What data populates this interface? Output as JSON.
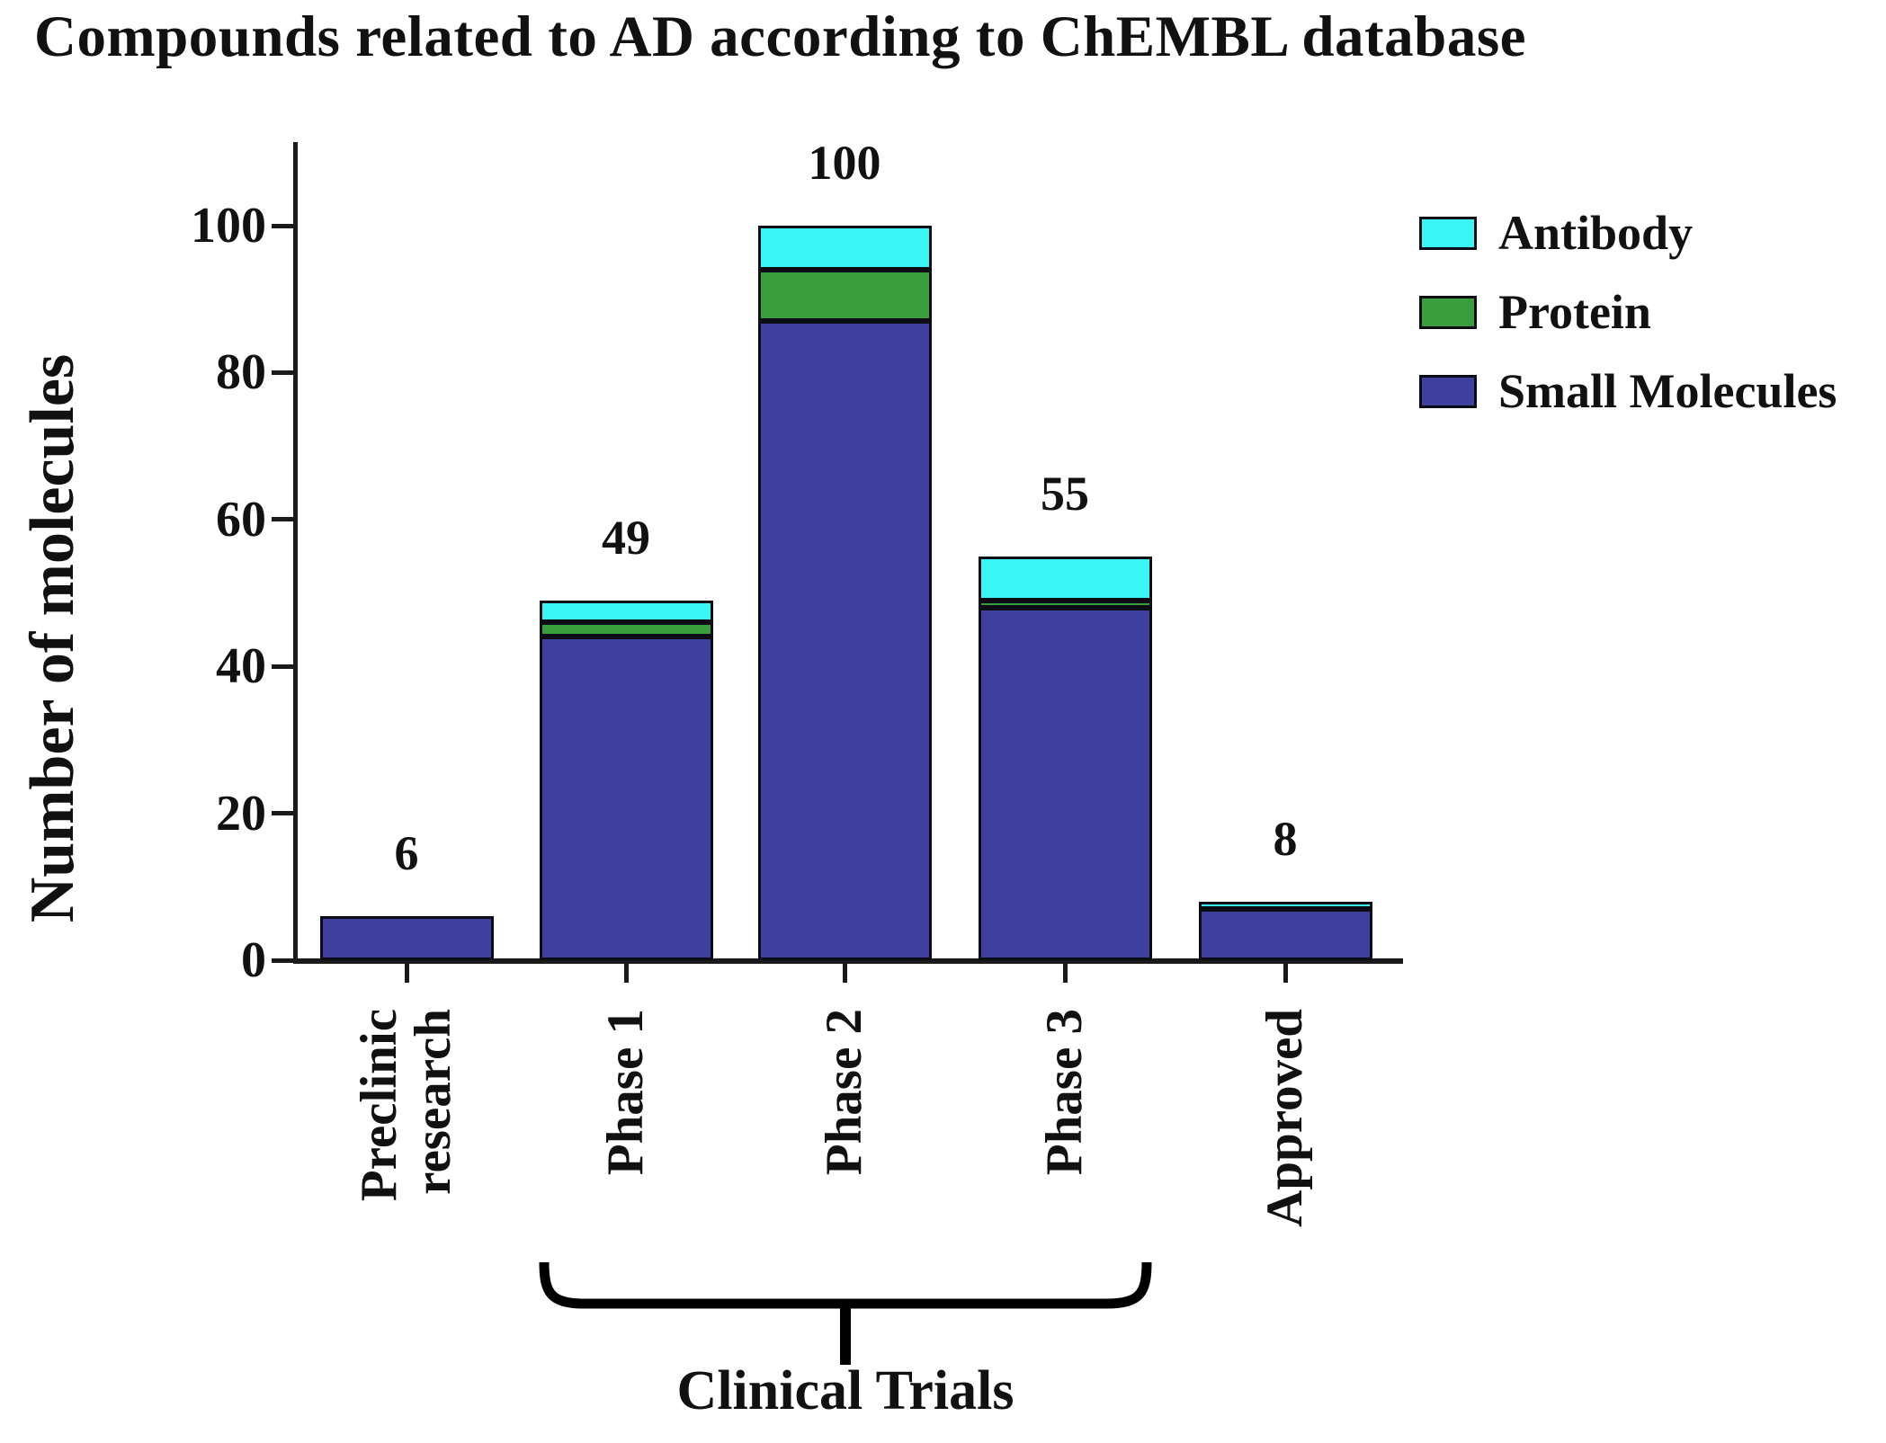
{
  "title": "Compounds related to AD according to ChEMBL database",
  "chart_data": {
    "type": "bar",
    "stacked": true,
    "title": "Compounds related to AD according to ChEMBL database",
    "xlabel": "",
    "ylabel": "Number of molecules",
    "ylim": [
      0,
      111
    ],
    "yticks": [
      0,
      20,
      40,
      60,
      80,
      100
    ],
    "grid": false,
    "legend_position": "right",
    "categories": [
      "Preclinic research",
      "Phase 1",
      "Phase 2",
      "Phase 3",
      "Approved"
    ],
    "category_display_lines": [
      [
        "Preclinic",
        "research"
      ],
      [
        "Phase 1"
      ],
      [
        "Phase 2"
      ],
      [
        "Phase 3"
      ],
      [
        "Approved"
      ]
    ],
    "series": [
      {
        "name": "Small Molecules",
        "color": "#3F3F9D",
        "values": [
          6,
          44,
          87,
          48,
          7
        ]
      },
      {
        "name": "Protein",
        "color": "#3B9E3E",
        "values": [
          0,
          2,
          7,
          1,
          0
        ]
      },
      {
        "name": "Antibody",
        "color": "#3BF4F4",
        "values": [
          0,
          3,
          6,
          6,
          1
        ]
      }
    ],
    "totals": [
      6,
      49,
      100,
      55,
      8
    ],
    "bracket": {
      "label": "Clinical Trials",
      "covers": [
        "Phase 1",
        "Phase 2",
        "Phase 3"
      ]
    }
  },
  "legend": {
    "items": [
      {
        "label": "Antibody",
        "color": "#3BF4F4"
      },
      {
        "label": "Protein",
        "color": "#3B9E3E"
      },
      {
        "label": "Small Molecules",
        "color": "#3F3F9D"
      }
    ]
  },
  "colors": {
    "axis": "#1a1a1a",
    "segment_border": "#0c0c14",
    "text": "#111111"
  }
}
